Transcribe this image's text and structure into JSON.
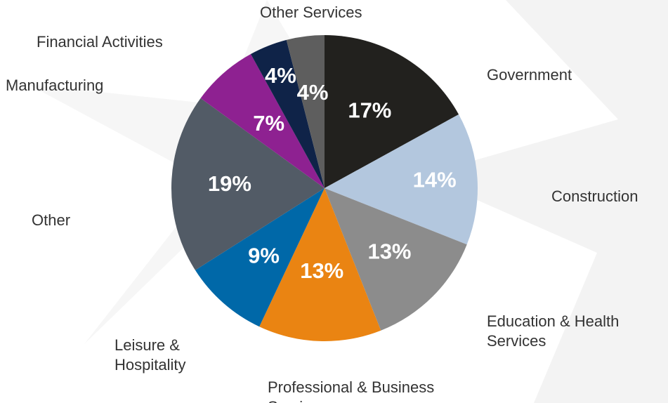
{
  "chart_data": {
    "type": "pie",
    "categories": [
      "Government",
      "Construction",
      "Education & Health Services",
      "Professional & Business Services",
      "Leisure & Hospitality",
      "Other",
      "Manufacturing",
      "Financial Activities",
      "Other Services"
    ],
    "values": [
      17,
      14,
      13,
      13,
      9,
      19,
      7,
      4,
      4
    ],
    "value_labels": [
      "17%",
      "14%",
      "13%",
      "13%",
      "9%",
      "19%",
      "7%",
      "4%",
      "4%"
    ],
    "colors": [
      "#22211e",
      "#b3c7de",
      "#8c8c8c",
      "#ea8412",
      "#0068a8",
      "#525b66",
      "#8e2191",
      "#0f2348",
      "#5e5e5e"
    ]
  }
}
